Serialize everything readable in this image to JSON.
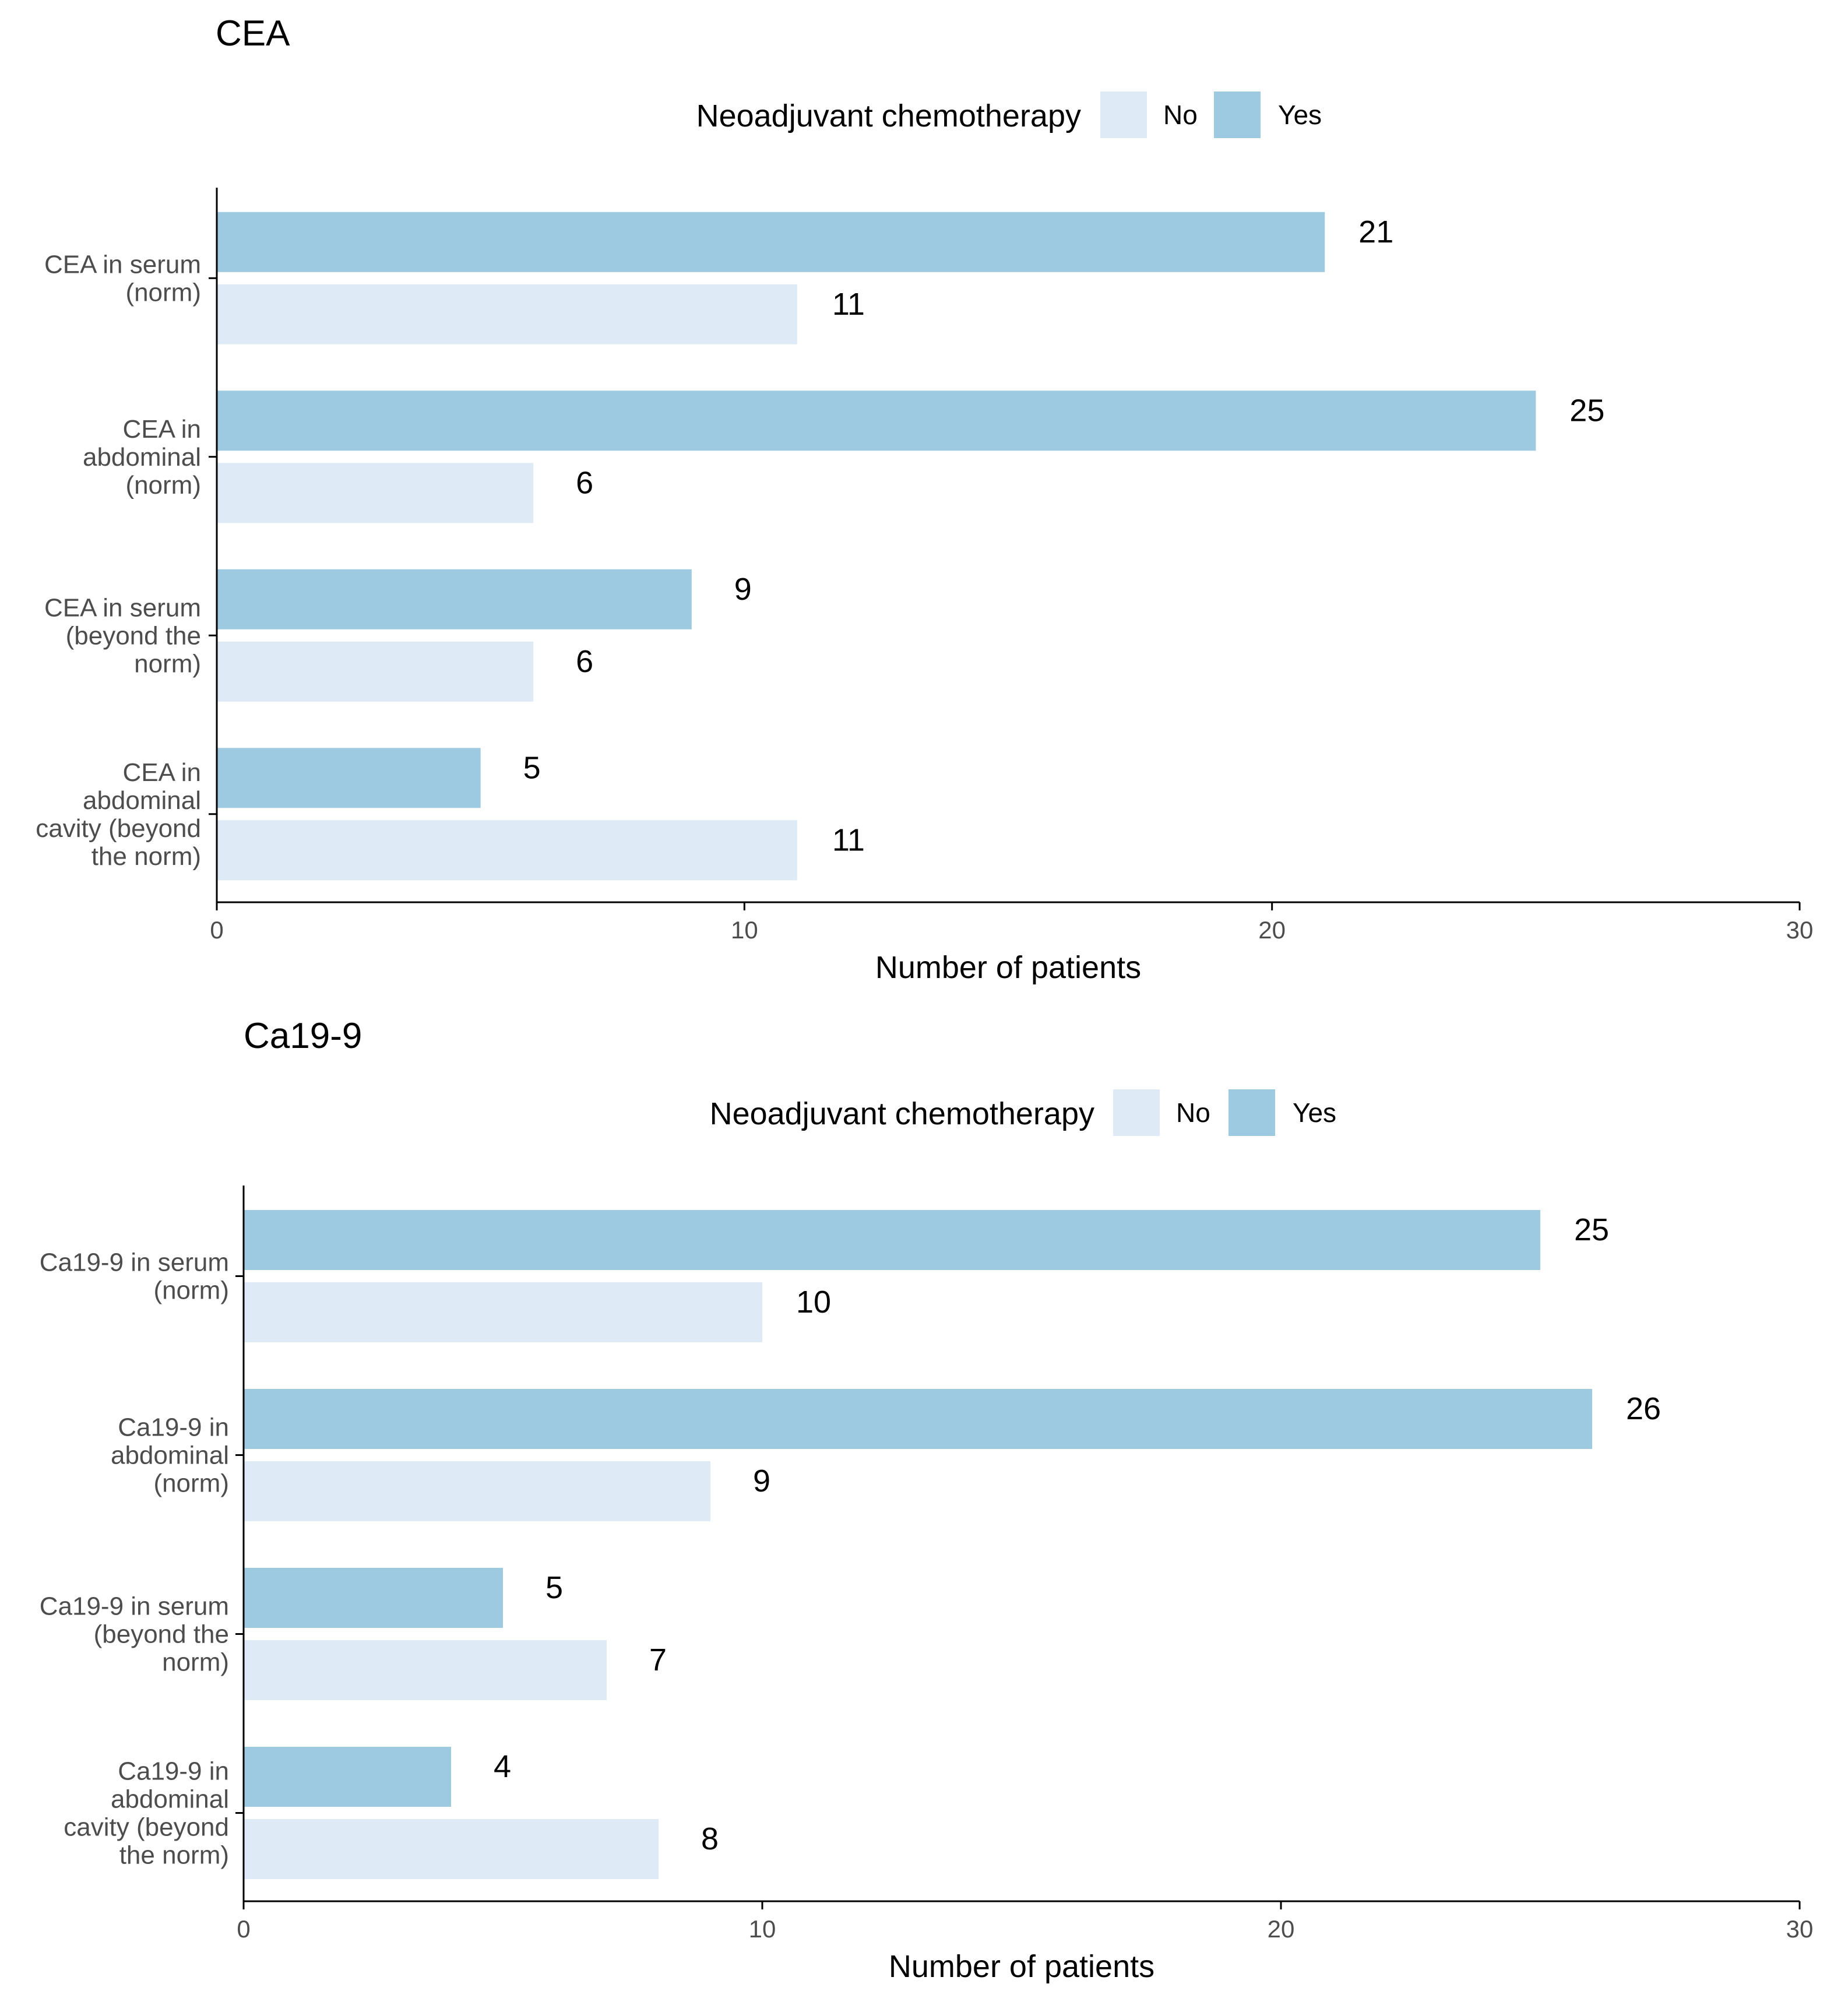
{
  "chart_data": [
    {
      "type": "bar",
      "orientation": "horizontal",
      "title": "CEA",
      "legend_title": "Neoadjuvant chemotherapy",
      "legend_position": "top",
      "xlabel": "Number of patients",
      "xlim": [
        0,
        30
      ],
      "xticks": [
        "0",
        "10",
        "20",
        "30"
      ],
      "categories": [
        [
          "CEA in serum",
          "(norm)"
        ],
        [
          "CEA in",
          "abdominal",
          "(norm)"
        ],
        [
          "CEA in serum",
          "(beyond the",
          "norm)"
        ],
        [
          "CEA in",
          "abdominal",
          "cavity (beyond",
          "the norm)"
        ]
      ],
      "series": [
        {
          "name": "Yes",
          "color": "#9ecae1",
          "values": [
            21,
            25,
            9,
            5
          ]
        },
        {
          "name": "No",
          "color": "#deebf7",
          "values": [
            11,
            6,
            6,
            11
          ]
        }
      ]
    },
    {
      "type": "bar",
      "orientation": "horizontal",
      "title": "Ca19-9",
      "legend_title": "Neoadjuvant chemotherapy",
      "legend_position": "top",
      "xlabel": "Number of patients",
      "xlim": [
        0,
        30
      ],
      "xticks": [
        "0",
        "10",
        "20",
        "30"
      ],
      "categories": [
        [
          "Ca19-9 in serum",
          "(norm)"
        ],
        [
          "Ca19-9 in",
          "abdominal",
          "(norm)"
        ],
        [
          "Ca19-9 in serum",
          "(beyond the",
          "norm)"
        ],
        [
          "Ca19-9 in",
          "abdominal",
          "cavity (beyond",
          "the norm)"
        ]
      ],
      "series": [
        {
          "name": "Yes",
          "color": "#9ecae1",
          "values": [
            25,
            26,
            5,
            4
          ]
        },
        {
          "name": "No",
          "color": "#deebf7",
          "values": [
            10,
            9,
            7,
            8
          ]
        }
      ]
    }
  ]
}
